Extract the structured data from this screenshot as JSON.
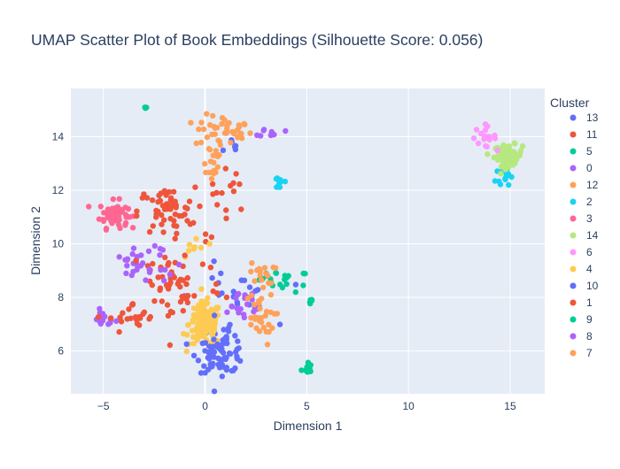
{
  "chart_data": {
    "type": "scatter",
    "title": "UMAP Scatter Plot of Book Embeddings (Silhouette Score: 0.056)",
    "xlabel": "Dimension 1",
    "ylabel": "Dimension 2",
    "xlim": [
      -6.6,
      16.7
    ],
    "ylim": [
      4.4,
      15.8
    ],
    "xticks": [
      -5,
      0,
      5,
      10,
      15
    ],
    "yticks": [
      6,
      8,
      10,
      12,
      14
    ],
    "grid": true,
    "legend_title": "Cluster",
    "legend_position": "right",
    "series": [
      {
        "name": "13",
        "color": "#636efa",
        "clusters": [
          {
            "x": 1.4,
            "y": 13.6,
            "sx": 0.25,
            "sy": 0.2,
            "n": 6
          },
          {
            "x": 0.6,
            "y": 6.6,
            "sx": 0.5,
            "sy": 0.3,
            "n": 12
          }
        ]
      },
      {
        "name": "11",
        "color": "#EF553B",
        "clusters": [
          {
            "x": 1.2,
            "y": 12.0,
            "sx": 0.5,
            "sy": 0.4,
            "n": 14
          },
          {
            "x": 0.2,
            "y": 10.2,
            "sx": 0.2,
            "sy": 0.2,
            "n": 3
          }
        ]
      },
      {
        "name": "5",
        "color": "#00cc96",
        "clusters": [
          {
            "x": -2.9,
            "y": 15.1,
            "sx": 0.03,
            "sy": 0.04,
            "n": 3
          },
          {
            "x": 4.1,
            "y": 8.6,
            "sx": 0.5,
            "sy": 0.2,
            "n": 14
          }
        ]
      },
      {
        "name": "0",
        "color": "#ab63fa",
        "clusters": [
          {
            "x": -3.6,
            "y": 9.2,
            "sx": 0.3,
            "sy": 0.25,
            "n": 18
          },
          {
            "x": -5.0,
            "y": 7.2,
            "sx": 0.3,
            "sy": 0.15,
            "n": 16
          }
        ]
      },
      {
        "name": "12",
        "color": "#FFA15A",
        "clusters": [
          {
            "x": 0.9,
            "y": 14.2,
            "sx": 0.7,
            "sy": 0.3,
            "n": 40
          },
          {
            "x": 0.3,
            "y": 13.1,
            "sx": 0.3,
            "sy": 0.4,
            "n": 20
          }
        ]
      },
      {
        "name": "2",
        "color": "#19d3f3",
        "clusters": [
          {
            "x": 3.7,
            "y": 12.3,
            "sx": 0.2,
            "sy": 0.15,
            "n": 10
          },
          {
            "x": 14.8,
            "y": 12.6,
            "sx": 0.25,
            "sy": 0.3,
            "n": 14
          }
        ]
      },
      {
        "name": "3",
        "color": "#FF6692",
        "clusters": [
          {
            "x": -4.5,
            "y": 11.1,
            "sx": 0.35,
            "sy": 0.25,
            "n": 60
          }
        ]
      },
      {
        "name": "14",
        "color": "#B6E880",
        "clusters": [
          {
            "x": 14.9,
            "y": 13.3,
            "sx": 0.35,
            "sy": 0.2,
            "n": 70
          }
        ]
      },
      {
        "name": "6",
        "color": "#FF97FF",
        "clusters": [
          {
            "x": 13.7,
            "y": 14.0,
            "sx": 0.3,
            "sy": 0.2,
            "n": 18
          }
        ]
      },
      {
        "name": "4",
        "color": "#FECB52",
        "clusters": [
          {
            "x": 0.0,
            "y": 7.0,
            "sx": 0.4,
            "sy": 0.4,
            "n": 130
          },
          {
            "x": -0.5,
            "y": 9.8,
            "sx": 0.3,
            "sy": 0.3,
            "n": 8
          }
        ]
      },
      {
        "name": "10",
        "color": "#636efa",
        "clusters": [
          {
            "x": 0.8,
            "y": 5.9,
            "sx": 0.6,
            "sy": 0.35,
            "n": 70
          },
          {
            "x": 1.3,
            "y": 8.0,
            "sx": 1.0,
            "sy": 0.6,
            "n": 25
          }
        ]
      },
      {
        "name": "1",
        "color": "#EF553B",
        "clusters": [
          {
            "x": -1.9,
            "y": 11.2,
            "sx": 0.7,
            "sy": 0.45,
            "n": 55
          },
          {
            "x": -1.5,
            "y": 8.5,
            "sx": 1.2,
            "sy": 0.8,
            "n": 60
          },
          {
            "x": -3.5,
            "y": 7.2,
            "sx": 0.6,
            "sy": 0.3,
            "n": 20
          }
        ]
      },
      {
        "name": "9",
        "color": "#00cc96",
        "clusters": [
          {
            "x": 5.0,
            "y": 5.35,
            "sx": 0.12,
            "sy": 0.12,
            "n": 10
          },
          {
            "x": 5.2,
            "y": 7.85,
            "sx": 0.05,
            "sy": 0.07,
            "n": 5
          },
          {
            "x": 3.0,
            "y": 8.9,
            "sx": 0.2,
            "sy": 0.15,
            "n": 6
          }
        ]
      },
      {
        "name": "8",
        "color": "#ab63fa",
        "clusters": [
          {
            "x": 3.3,
            "y": 14.15,
            "sx": 0.3,
            "sy": 0.08,
            "n": 10
          },
          {
            "x": -2.2,
            "y": 9.4,
            "sx": 0.5,
            "sy": 0.4,
            "n": 15
          },
          {
            "x": 1.7,
            "y": 7.7,
            "sx": 0.6,
            "sy": 0.4,
            "n": 20
          }
        ]
      },
      {
        "name": "7",
        "color": "#FFA15A",
        "clusters": [
          {
            "x": 2.6,
            "y": 7.2,
            "sx": 0.4,
            "sy": 0.5,
            "n": 30
          },
          {
            "x": 2.8,
            "y": 8.9,
            "sx": 0.3,
            "sy": 0.2,
            "n": 15
          }
        ]
      }
    ]
  }
}
